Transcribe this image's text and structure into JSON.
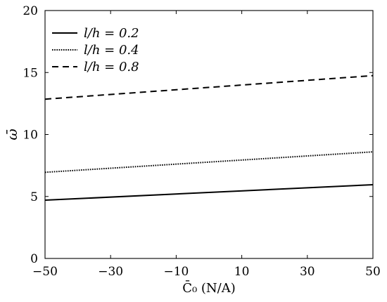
{
  "chart_data": {
    "type": "line",
    "title": "",
    "xlabel": "C̄₀ (N/A)",
    "ylabel": "ω̄",
    "xlim": [
      -50,
      50
    ],
    "ylim": [
      0,
      20
    ],
    "x_ticks": [
      -50,
      -30,
      -10,
      10,
      30,
      50
    ],
    "y_ticks": [
      0,
      5,
      10,
      15,
      20
    ],
    "x_tick_labels": [
      "−50",
      "−30",
      "−10",
      "10",
      "30",
      "50"
    ],
    "y_tick_labels": [
      "0",
      "5",
      "10",
      "15",
      "20"
    ],
    "grid": false,
    "legend_position": "top-left",
    "series": [
      {
        "name": "l/h = 0.2",
        "style": "solid",
        "x": [
          -50,
          50
        ],
        "y": [
          4.7,
          5.95
        ]
      },
      {
        "name": "l/h = 0.4",
        "style": "dotted",
        "x": [
          -50,
          50
        ],
        "y": [
          6.95,
          8.6
        ]
      },
      {
        "name": "l/h = 0.8",
        "style": "dashed",
        "x": [
          -50,
          50
        ],
        "y": [
          12.85,
          14.75
        ]
      }
    ],
    "line_color": "#000000"
  }
}
